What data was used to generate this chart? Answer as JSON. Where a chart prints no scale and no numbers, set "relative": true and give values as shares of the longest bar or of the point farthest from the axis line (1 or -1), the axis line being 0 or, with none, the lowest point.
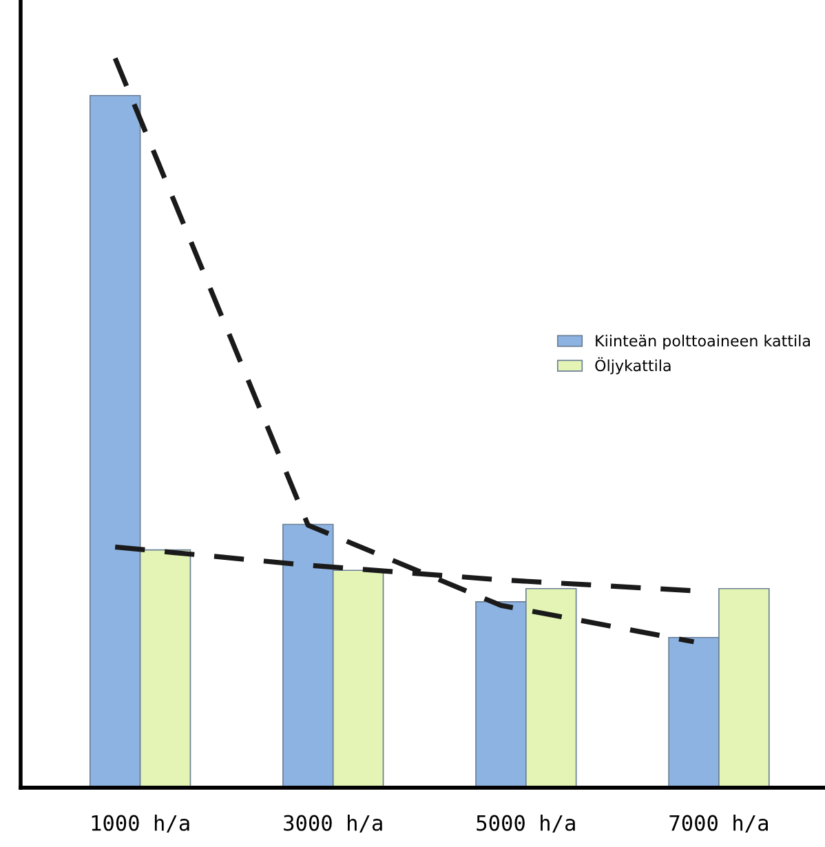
{
  "chart_data": {
    "type": "bar",
    "relative": true,
    "categories": [
      "1000 h/a",
      "3000 h/a",
      "5000 h/a",
      "7000 h/a"
    ],
    "legend": "center right",
    "grid": false,
    "series": [
      {
        "name": "Kiinteän polttoaineen kattila",
        "color": "#8db3e2",
        "values": [
          0.949,
          0.361,
          0.255,
          0.206
        ]
      },
      {
        "name": "Öljykattila",
        "color": "#e4f4b4",
        "values": [
          0.326,
          0.298,
          0.273,
          0.273
        ]
      },
      {
        "type": "line",
        "color": "#1a1a1a",
        "line_style": "dashed",
        "values": [
          1.0,
          0.36,
          0.25,
          0.2
        ]
      },
      {
        "type": "line",
        "color": "#1a1a1a",
        "line_style": "dashed",
        "values": [
          0.33,
          0.305,
          0.285,
          0.27
        ]
      }
    ]
  }
}
